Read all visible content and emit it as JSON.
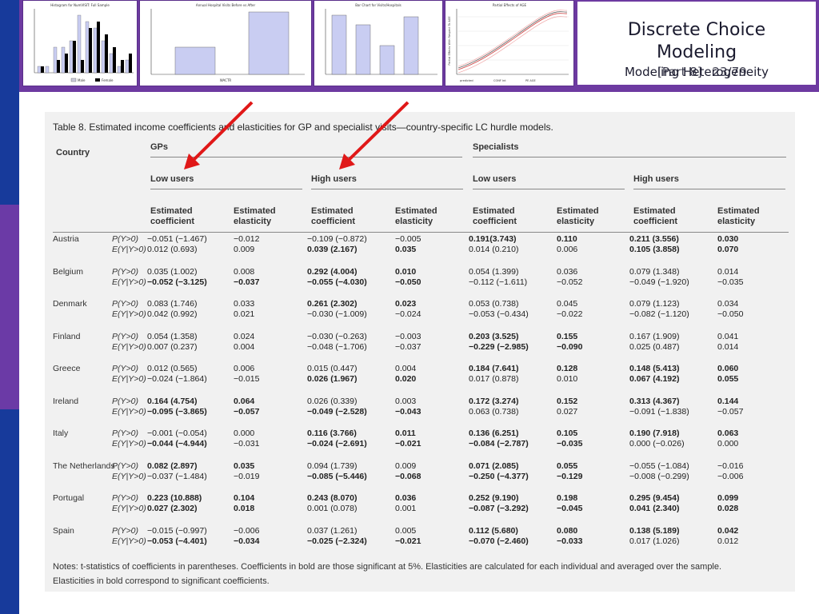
{
  "slide": {
    "title_line1": "Discrete Choice",
    "title_line2": "Modeling",
    "subtitle": "Modeling Heterogeneity",
    "part": "[Part 8]",
    "page": "23/79"
  },
  "thumbnails": [
    {
      "title": "Histogram for NumVISIT: Full Sample",
      "legend": [
        "Male",
        "Female"
      ]
    },
    {
      "title": "Annual Hospital Visits Before vs After",
      "xlabel": "WACTR"
    },
    {
      "title": "Bar Chart for Visits/Hospitals",
      "ylabel": ""
    },
    {
      "title": "Partial Effects of AGE",
      "ylabel": "Partial Effects With Respect To AGE",
      "legend": [
        "predicted",
        "CONF Int",
        "PE AGE"
      ]
    }
  ],
  "table": {
    "title": "Table 8. Estimated income coefficients and elasticities for GP and specialist visits—country-specific LC hurdle models.",
    "col_country": "Country",
    "group_gp": "GPs",
    "group_sp": "Specialists",
    "sub_low": "Low users",
    "sub_high": "High users",
    "col_coef": "Estimated coefficient",
    "col_elas": "Estimated elasticity",
    "row_labels": [
      "P(Y>0)",
      "E(Y|Y>0)"
    ],
    "rows": [
      {
        "country": "Austria",
        "p": [
          "−0.051 (−1.467)",
          "−0.012",
          "−0.109 (−0.872)",
          "−0.005",
          "0.191(3.743)",
          "0.110",
          "0.211 (3.556)",
          "0.030"
        ],
        "e": [
          "0.012 (0.693)",
          "0.009",
          "0.039 (2.167)",
          "0.035",
          "0.014 (0.210)",
          "0.006",
          "0.105 (3.858)",
          "0.070"
        ]
      },
      {
        "country": "Belgium",
        "p": [
          "0.035 (1.002)",
          "0.008",
          "0.292 (4.004)",
          "0.010",
          "0.054 (1.399)",
          "0.036",
          "0.079 (1.348)",
          "0.014"
        ],
        "e": [
          "−0.052 (−3.125)",
          "−0.037",
          "−0.055 (−4.030)",
          "−0.050",
          "−0.112 (−1.611)",
          "−0.052",
          "−0.049 (−1.920)",
          "−0.035"
        ]
      },
      {
        "country": "Denmark",
        "p": [
          "0.083 (1.746)",
          "0.033",
          "0.261 (2.302)",
          "0.023",
          "0.053 (0.738)",
          "0.045",
          "0.079 (1.123)",
          "0.034"
        ],
        "e": [
          "0.042 (0.992)",
          "0.021",
          "−0.030 (−1.009)",
          "−0.024",
          "−0.053 (−0.434)",
          "−0.022",
          "−0.082 (−1.120)",
          "−0.050"
        ]
      },
      {
        "country": "Finland",
        "p": [
          "0.054 (1.358)",
          "0.024",
          "−0.030 (−0.263)",
          "−0.003",
          "0.203 (3.525)",
          "0.155",
          "0.167 (1.909)",
          "0.041"
        ],
        "e": [
          "0.007 (0.237)",
          "0.004",
          "−0.048 (−1.706)",
          "−0.037",
          "−0.229 (−2.985)",
          "−0.090",
          "0.025 (0.487)",
          "0.014"
        ]
      },
      {
        "country": "Greece",
        "p": [
          "0.012 (0.565)",
          "0.006",
          "0.015 (0.447)",
          "0.004",
          "0.184 (7.641)",
          "0.128",
          "0.148 (5.413)",
          "0.060"
        ],
        "e": [
          "−0.024 (−1.864)",
          "−0.015",
          "0.026 (1.967)",
          "0.020",
          "0.017 (0.878)",
          "0.010",
          "0.067 (4.192)",
          "0.055"
        ]
      },
      {
        "country": "Ireland",
        "p": [
          "0.164 (4.754)",
          "0.064",
          "0.026 (0.339)",
          "0.003",
          "0.172 (3.274)",
          "0.152",
          "0.313 (4.367)",
          "0.144"
        ],
        "e": [
          "−0.095 (−3.865)",
          "−0.057",
          "−0.049 (−2.528)",
          "−0.043",
          "0.063 (0.738)",
          "0.027",
          "−0.091 (−1.838)",
          "−0.057"
        ]
      },
      {
        "country": "Italy",
        "p": [
          "−0.001 (−0.054)",
          "0.000",
          "0.116 (3.766)",
          "0.011",
          "0.136 (6.251)",
          "0.105",
          "0.190 (7.918)",
          "0.063"
        ],
        "e": [
          "−0.044 (−4.944)",
          "−0.031",
          "−0.024 (−2.691)",
          "−0.021",
          "−0.084 (−2.787)",
          "−0.035",
          "0.000 (−0.026)",
          "0.000"
        ]
      },
      {
        "country": "The Netherlands",
        "p": [
          "0.082 (2.897)",
          "0.035",
          "0.094 (1.739)",
          "0.009",
          "0.071 (2.085)",
          "0.055",
          "−0.055 (−1.084)",
          "−0.016"
        ],
        "e": [
          "−0.037 (−1.484)",
          "−0.019",
          "−0.085 (−5.446)",
          "−0.068",
          "−0.250 (−4.377)",
          "−0.129",
          "−0.008 (−0.299)",
          "−0.006"
        ]
      },
      {
        "country": "Portugal",
        "p": [
          "0.223 (10.888)",
          "0.104",
          "0.243 (8.070)",
          "0.036",
          "0.252 (9.190)",
          "0.198",
          "0.295 (9.454)",
          "0.099"
        ],
        "e": [
          "0.027 (2.302)",
          "0.018",
          "0.001 (0.078)",
          "0.001",
          "−0.087 (−3.292)",
          "−0.045",
          "0.041 (2.340)",
          "0.028"
        ]
      },
      {
        "country": "Spain",
        "p": [
          "−0.015 (−0.997)",
          "−0.006",
          "0.037 (1.261)",
          "0.005",
          "0.112 (5.680)",
          "0.080",
          "0.138 (5.189)",
          "0.042"
        ],
        "e": [
          "−0.053 (−4.401)",
          "−0.034",
          "−0.025 (−2.324)",
          "−0.021",
          "−0.070 (−2.460)",
          "−0.033",
          "0.017 (1.026)",
          "0.012"
        ]
      }
    ],
    "bold": {
      "Austria": {
        "p": [
          4,
          5,
          6,
          7
        ],
        "e": [
          2,
          3,
          6,
          7
        ]
      },
      "Belgium": {
        "p": [
          2,
          3
        ],
        "e": [
          0,
          1,
          2,
          3
        ]
      },
      "Denmark": {
        "p": [
          2,
          3
        ],
        "e": []
      },
      "Finland": {
        "p": [
          4,
          5
        ],
        "e": [
          4,
          5
        ]
      },
      "Greece": {
        "p": [
          4,
          5,
          6,
          7
        ],
        "e": [
          2,
          3,
          6,
          7
        ]
      },
      "Ireland": {
        "p": [
          0,
          1,
          4,
          5,
          6,
          7
        ],
        "e": [
          0,
          1,
          2,
          3
        ]
      },
      "Italy": {
        "p": [
          2,
          3,
          4,
          5,
          6,
          7
        ],
        "e": [
          0,
          2,
          3,
          4,
          5
        ]
      },
      "The Netherlands": {
        "p": [
          0,
          1,
          4,
          5
        ],
        "e": [
          2,
          3,
          4,
          5
        ]
      },
      "Portugal": {
        "p": [
          0,
          1,
          2,
          3,
          4,
          5,
          6,
          7
        ],
        "e": [
          0,
          1,
          4,
          5,
          6,
          7
        ]
      },
      "Spain": {
        "p": [
          4,
          5,
          6,
          7
        ],
        "e": [
          0,
          1,
          2,
          3,
          4,
          5
        ]
      }
    },
    "notes_line1": "Notes: t-statistics of coefficients in parentheses. Coefficients in bold are those significant at 5%. Elasticities are calculated for each individual and averaged over the sample.",
    "notes_line2": "Elasticities in bold correspond to significant coefficients."
  },
  "colors": {
    "header": "#6d3aa1",
    "leftbar_blue": "#173a9b",
    "leftbar_purple": "#6b3aa6",
    "arrow": "#e01818"
  }
}
